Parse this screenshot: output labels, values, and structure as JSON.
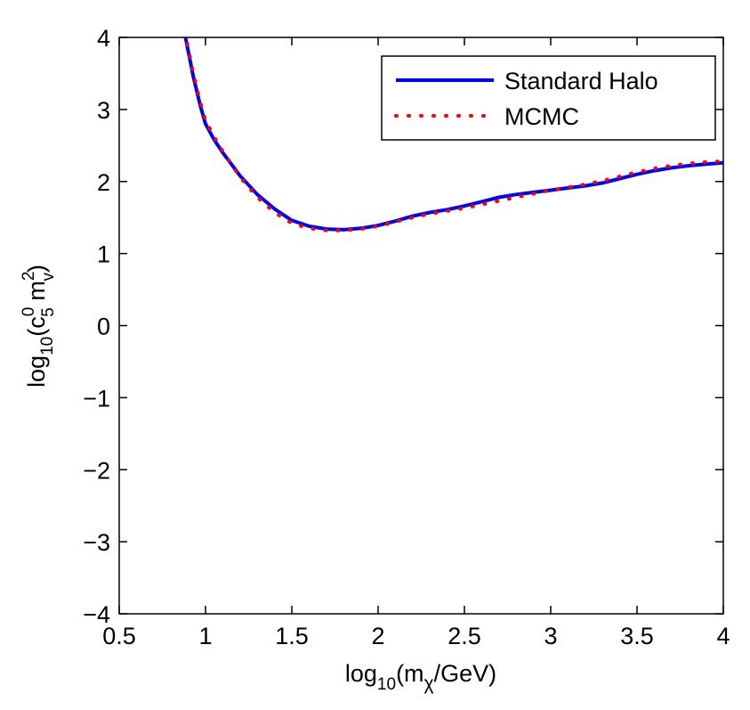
{
  "chart_data": {
    "type": "line",
    "title": "",
    "xlabel": {
      "base": "log",
      "sub": "10",
      "open": "(m",
      "sub2": "χ",
      "close": "/GeV)"
    },
    "ylabel": {
      "base": "log",
      "sub": "10",
      "open": "(c",
      "sup": "0",
      "sub2": "5",
      "mid": " m",
      "sup2": "2",
      "sub3": "v",
      "close": ")"
    },
    "xlim": [
      0.5,
      4
    ],
    "ylim": [
      -4,
      4
    ],
    "xticks": [
      0.5,
      1,
      1.5,
      2,
      2.5,
      3,
      3.5,
      4
    ],
    "xtick_labels": [
      "0.5",
      "1",
      "1.5",
      "2",
      "2.5",
      "3",
      "3.5",
      "4"
    ],
    "yticks": [
      -4,
      -3,
      -2,
      -1,
      0,
      1,
      2,
      3,
      4
    ],
    "ytick_labels": [
      "−4",
      "−3",
      "−2",
      "−1",
      "0",
      "1",
      "2",
      "3",
      "4"
    ],
    "legend_position": "top-right",
    "series": [
      {
        "name": "Standard Halo",
        "color": "#0000ff",
        "style": "solid",
        "x": [
          0.88,
          0.93,
          0.97,
          1.0,
          1.05,
          1.1,
          1.2,
          1.3,
          1.4,
          1.5,
          1.6,
          1.7,
          1.8,
          1.9,
          2.0,
          2.1,
          2.2,
          2.3,
          2.4,
          2.5,
          2.6,
          2.7,
          2.8,
          2.9,
          3.0,
          3.1,
          3.2,
          3.3,
          3.4,
          3.5,
          3.6,
          3.7,
          3.8,
          3.9,
          4.0
        ],
        "y": [
          4.05,
          3.45,
          3.05,
          2.8,
          2.58,
          2.4,
          2.08,
          1.82,
          1.62,
          1.46,
          1.38,
          1.34,
          1.33,
          1.35,
          1.39,
          1.45,
          1.52,
          1.57,
          1.61,
          1.66,
          1.72,
          1.78,
          1.82,
          1.85,
          1.88,
          1.91,
          1.94,
          1.98,
          2.04,
          2.1,
          2.15,
          2.19,
          2.22,
          2.24,
          2.26
        ]
      },
      {
        "name": "MCMC",
        "color": "#ff0000",
        "style": "dotted",
        "x": [
          0.88,
          0.93,
          0.97,
          1.0,
          1.05,
          1.1,
          1.2,
          1.3,
          1.4,
          1.5,
          1.6,
          1.7,
          1.8,
          1.9,
          2.0,
          2.1,
          2.2,
          2.3,
          2.4,
          2.5,
          2.6,
          2.7,
          2.8,
          2.9,
          3.0,
          3.1,
          3.2,
          3.3,
          3.4,
          3.5,
          3.6,
          3.7,
          3.8,
          3.9,
          4.0
        ],
        "y": [
          4.08,
          3.5,
          3.1,
          2.85,
          2.62,
          2.42,
          2.06,
          1.78,
          1.57,
          1.42,
          1.35,
          1.32,
          1.32,
          1.34,
          1.38,
          1.44,
          1.5,
          1.55,
          1.59,
          1.63,
          1.68,
          1.73,
          1.78,
          1.83,
          1.88,
          1.92,
          1.96,
          2.01,
          2.07,
          2.13,
          2.18,
          2.22,
          2.25,
          2.27,
          2.28
        ]
      }
    ]
  }
}
